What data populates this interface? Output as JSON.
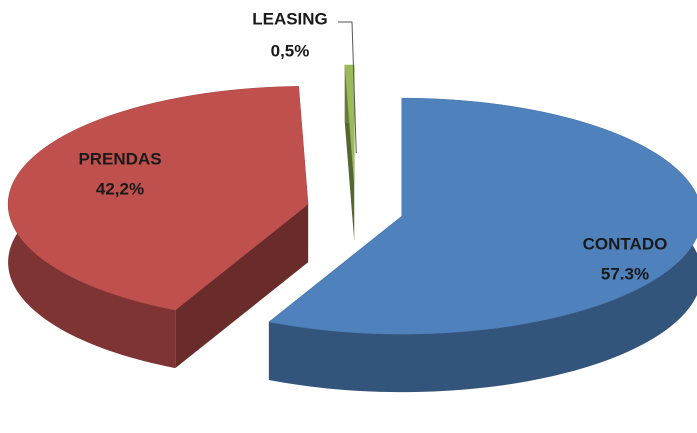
{
  "chart_data": {
    "type": "pie3d",
    "categories": [
      "CONTADO",
      "PRENDAS",
      "LEASING"
    ],
    "values": [
      57.3,
      42.2,
      0.5
    ],
    "value_labels": [
      "57.3%",
      "42,2%",
      "0,5%"
    ],
    "colors": [
      "#4f81bd",
      "#c0504d",
      "#9bbb59"
    ]
  }
}
